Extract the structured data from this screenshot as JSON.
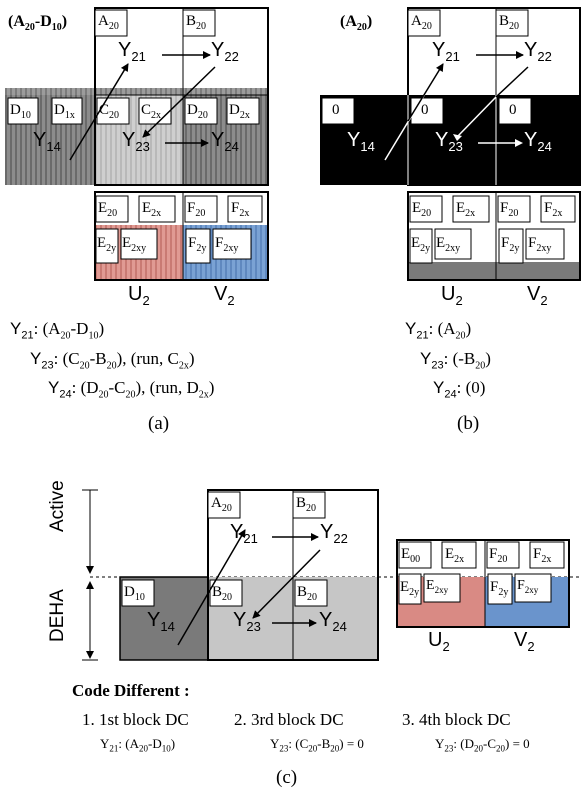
{
  "panel_a": {
    "title_prefix": "(A",
    "title_sub1": "20",
    "title_mid": "-D",
    "title_sub2": "10",
    "title_suffix": ")",
    "cells": {
      "a20": {
        "base": "A",
        "sub": "20"
      },
      "b20": {
        "base": "B",
        "sub": "20"
      },
      "d10": {
        "base": "D",
        "sub": "10"
      },
      "d1x": {
        "base": "D",
        "sub": "1x"
      },
      "c20": {
        "base": "C",
        "sub": "20"
      },
      "c2x": {
        "base": "C",
        "sub": "2x"
      },
      "d20": {
        "base": "D",
        "sub": "20"
      },
      "d2x": {
        "base": "D",
        "sub": "2x"
      },
      "e20": {
        "base": "E",
        "sub": "20"
      },
      "e2x": {
        "base": "E",
        "sub": "2x"
      },
      "e2y": {
        "base": "E",
        "sub": "2y"
      },
      "e2xy": {
        "base": "E",
        "sub": "2xy"
      },
      "f20": {
        "base": "F",
        "sub": "20"
      },
      "f2x": {
        "base": "F",
        "sub": "2x"
      },
      "f2y": {
        "base": "F",
        "sub": "2y"
      },
      "f2xy": {
        "base": "F",
        "sub": "2xy"
      }
    },
    "y": {
      "y21": {
        "base": "Y",
        "sub": "21"
      },
      "y22": {
        "base": "Y",
        "sub": "22"
      },
      "y14": {
        "base": "Y",
        "sub": "14"
      },
      "y23": {
        "base": "Y",
        "sub": "23"
      },
      "y24": {
        "base": "Y",
        "sub": "24"
      }
    },
    "u2": {
      "base": "U",
      "sub": "2"
    },
    "v2": {
      "base": "V",
      "sub": "2"
    },
    "eq1": {
      "y": "Y",
      "ysub": "21",
      "t1": ": (A",
      "s1": "20",
      "t2": "-D",
      "s2": "10",
      "t3": ")"
    },
    "eq2": {
      "y": "Y",
      "ysub": "23",
      "t1": ": (C",
      "s1": "20",
      "t2": "-B",
      "s2": "20",
      "t3": "), (run, C",
      "s3": "2x",
      "t4": ")"
    },
    "eq3": {
      "y": "Y",
      "ysub": "24",
      "t1": ": (D",
      "s1": "20",
      "t2": "-C",
      "s2": "20",
      "t3": "), (run, D",
      "s3": "2x",
      "t4": ")"
    },
    "caption": "(a)"
  },
  "panel_b": {
    "title_prefix": "(A",
    "title_sub1": "20",
    "title_suffix": ")",
    "zeros": [
      "0",
      "0",
      "0"
    ],
    "cells": {
      "a20": {
        "base": "A",
        "sub": "20"
      },
      "b20": {
        "base": "B",
        "sub": "20"
      },
      "e20": {
        "base": "E",
        "sub": "20"
      },
      "e2x": {
        "base": "E",
        "sub": "2x"
      },
      "e2y": {
        "base": "E",
        "sub": "2y"
      },
      "e2xy": {
        "base": "E",
        "sub": "2xy"
      },
      "f20": {
        "base": "F",
        "sub": "20"
      },
      "f2x": {
        "base": "F",
        "sub": "2x"
      },
      "f2y": {
        "base": "F",
        "sub": "2y"
      },
      "f2xy": {
        "base": "F",
        "sub": "2xy"
      }
    },
    "y": {
      "y21": {
        "base": "Y",
        "sub": "21"
      },
      "y22": {
        "base": "Y",
        "sub": "22"
      },
      "y14": {
        "base": "Y",
        "sub": "14"
      },
      "y23": {
        "base": "Y",
        "sub": "23"
      },
      "y24": {
        "base": "Y",
        "sub": "24"
      }
    },
    "u2": {
      "base": "U",
      "sub": "2"
    },
    "v2": {
      "base": "V",
      "sub": "2"
    },
    "eq1": {
      "y": "Y",
      "ysub": "21",
      "t1": ": (A",
      "s1": "20",
      "t2": ")"
    },
    "eq2": {
      "y": "Y",
      "ysub": "23",
      "t1": ": (-B",
      "s1": "20",
      "t2": ")"
    },
    "eq3": {
      "y": "Y",
      "ysub": "24",
      "t1": ": (0)"
    },
    "caption": "(b)"
  },
  "panel_c": {
    "active": "Active",
    "deha": "DEHA",
    "cells": {
      "a20": {
        "base": "A",
        "sub": "20"
      },
      "b20top": {
        "base": "B",
        "sub": "20"
      },
      "d10": {
        "base": "D",
        "sub": "10"
      },
      "b20mid": {
        "base": "B",
        "sub": "20"
      },
      "b20right": {
        "base": "B",
        "sub": "20"
      },
      "e00": {
        "base": "E",
        "sub": "00"
      },
      "e2x": {
        "base": "E",
        "sub": "2x"
      },
      "e2y": {
        "base": "E",
        "sub": "2y"
      },
      "e2xy": {
        "base": "E",
        "sub": "2xy"
      },
      "f20": {
        "base": "F",
        "sub": "20"
      },
      "f2x": {
        "base": "F",
        "sub": "2x"
      },
      "f2y": {
        "base": "F",
        "sub": "2y"
      },
      "f2xy": {
        "base": "F",
        "sub": "2xy"
      }
    },
    "y": {
      "y21": {
        "base": "Y",
        "sub": "21"
      },
      "y22": {
        "base": "Y",
        "sub": "22"
      },
      "y14": {
        "base": "Y",
        "sub": "14"
      },
      "y23": {
        "base": "Y",
        "sub": "23"
      },
      "y24": {
        "base": "Y",
        "sub": "24"
      }
    },
    "u2": {
      "base": "U",
      "sub": "2"
    },
    "v2": {
      "base": "V",
      "sub": "2"
    },
    "code_title": "Code Different :",
    "items": [
      {
        "num": "1. 1st block DC"
      },
      {
        "num": "2. 3rd block DC"
      },
      {
        "num": "3. 4th block DC"
      }
    ],
    "formula1": {
      "y": "Y",
      "ysub": "21",
      "t1": ": (A",
      "s1": "20",
      "t2": "-D",
      "s2": "10",
      "t3": ")"
    },
    "formula2": {
      "y": "Y",
      "ysub": "23",
      "t1": ": (C",
      "s1": "20",
      "t2": "-B",
      "s2": "20",
      "t3": ") = 0"
    },
    "formula3": {
      "y": "Y",
      "ysub": "23",
      "t1": ": (D",
      "s1": "20",
      "t2": "-C",
      "s2": "20",
      "t3": ") = 0"
    },
    "caption": "(c)"
  },
  "colors": {
    "dark_gray": "#7a7a7a",
    "mid_gray": "#9a9a9a",
    "light_gray": "#c8c8c8",
    "black": "#000000",
    "red": "#d98a84",
    "blue": "#6a94cc"
  }
}
